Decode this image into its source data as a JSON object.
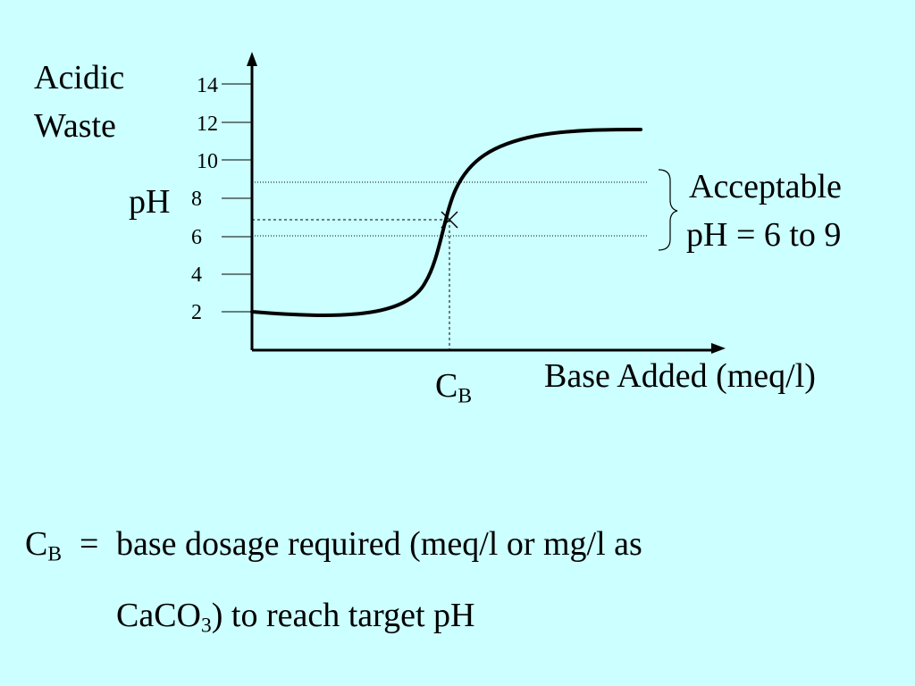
{
  "slide": {
    "label_acidic": "Acidic",
    "label_waste": "Waste",
    "label_ph": "pH",
    "yticks": [
      "14",
      "12",
      "10",
      "8",
      "6",
      "4",
      "2"
    ],
    "xlabel": "Base Added (meq/l)",
    "cb_main": "C",
    "cb_sub": "B",
    "acceptable_line1": "Acceptable",
    "acceptable_line2": "pH = 6 to 9",
    "def_c": "C",
    "def_sub": "B",
    "def_eq": "=",
    "def_line1": "base dosage required (meq/l or mg/l as",
    "def_line2_a": "CaCO",
    "def_line2_sub": "3",
    "def_line2_b": ") to reach target pH"
  },
  "curve": {
    "ph_at_start": 2.0,
    "ph_min": 1.8,
    "ph_at_cb": 7.0,
    "ph_plateau": 11.5,
    "acceptable_range": [
      6,
      9
    ]
  },
  "colors": {
    "background": "#ccffff",
    "ink": "#000000"
  }
}
